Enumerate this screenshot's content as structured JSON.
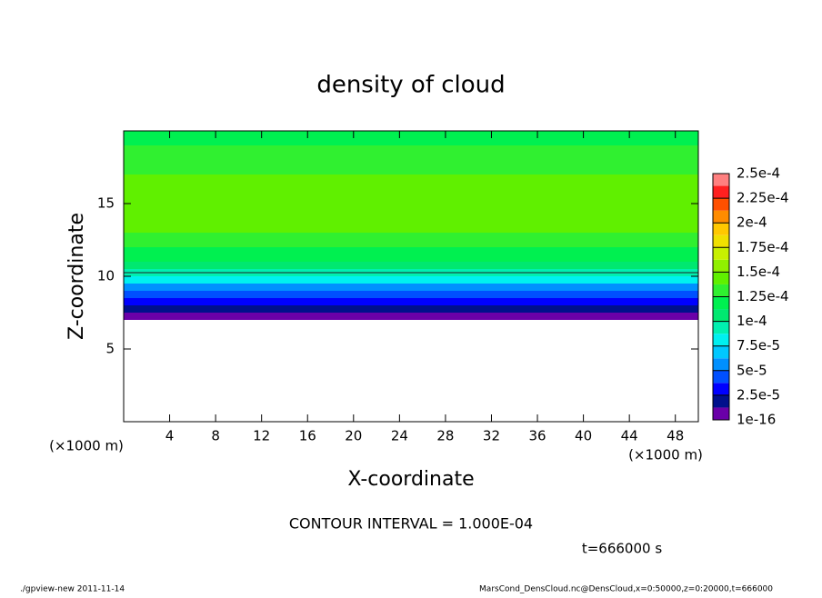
{
  "chart_data": {
    "type": "contour",
    "title": "density of cloud",
    "x_label": "X-coordinate",
    "y_label": "Z-coordinate",
    "x_unit": "(×1000 m)",
    "y_unit": "(×1000 m)",
    "xlim": [
      0,
      50
    ],
    "xticks": [
      4,
      8,
      12,
      16,
      20,
      24,
      28,
      32,
      36,
      40,
      44,
      48
    ],
    "ylim": [
      0,
      20
    ],
    "yticks": [
      5,
      10,
      15
    ],
    "z": [
      7,
      7.5,
      8,
      8.5,
      9,
      9.5,
      10,
      10.5,
      11,
      12,
      13,
      14,
      15,
      16,
      17,
      18,
      19
    ],
    "values": [
      5e-06,
      2e-05,
      3e-05,
      4.5e-05,
      6e-05,
      8e-05,
      9.5e-05,
      0.00011,
      0.00012,
      0.00013,
      0.00014,
      0.000145,
      0.000145,
      0.00014,
      0.000135,
      0.00013,
      0.00012
    ],
    "contour_line": {
      "level": 0.0001,
      "z": 10.25
    },
    "cbar_lim": [
      1e-16,
      0.00025
    ],
    "cbar_ticks": [
      {
        "value": 1e-16,
        "label": "1e-16"
      },
      {
        "value": 2.5e-05,
        "label": "2.5e-5"
      },
      {
        "value": 5e-05,
        "label": "5e-5"
      },
      {
        "value": 7.5e-05,
        "label": "7.5e-5"
      },
      {
        "value": 0.0001,
        "label": "1e-4"
      },
      {
        "value": 0.000125,
        "label": "1.25e-4"
      },
      {
        "value": 0.00015,
        "label": "1.5e-4"
      },
      {
        "value": 0.000175,
        "label": "1.75e-4"
      },
      {
        "value": 0.0002,
        "label": "2e-4"
      },
      {
        "value": 0.000225,
        "label": "2.25e-4"
      },
      {
        "value": 0.00025,
        "label": "2.5e-4"
      }
    ],
    "colors": [
      "#6a00a8",
      "#00108c",
      "#0000ff",
      "#0050ff",
      "#0090ff",
      "#00c8ff",
      "#00f0f0",
      "#00f0b0",
      "#00e870",
      "#00f050",
      "#30f030",
      "#60f000",
      "#90f000",
      "#c8f000",
      "#f0e000",
      "#ffc800",
      "#ff8c00",
      "#ff5000",
      "#ff2020",
      "#ff8080"
    ],
    "contour_interval": "CONTOUR INTERVAL = 1.000E-04",
    "time_label": "t=666000 s",
    "footer_left": "./gpview-new  2011-11-14",
    "footer_right": "MarsCond_DensCloud.nc@DensCloud,x=0:50000,z=0:20000,t=666000"
  }
}
